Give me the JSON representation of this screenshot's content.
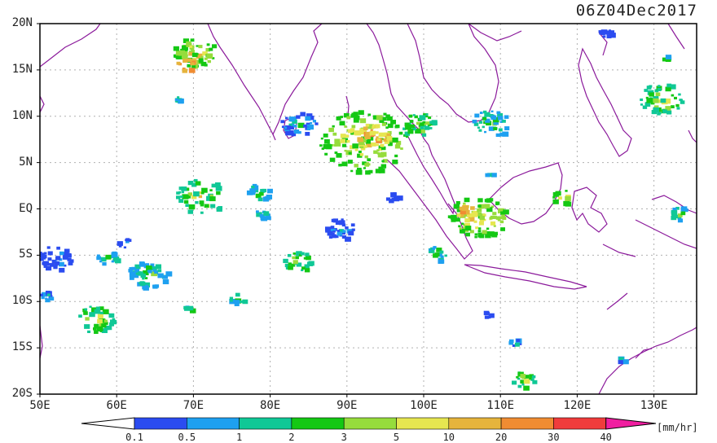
{
  "title": "06Z04Dec2017",
  "units": "[mm/hr]",
  "lat_axis": [
    "20N",
    "15N",
    "10N",
    "5N",
    "EQ",
    "5S",
    "10S",
    "15S",
    "20S"
  ],
  "lon_axis": [
    "50E",
    "60E",
    "70E",
    "80E",
    "90E",
    "100E",
    "110E",
    "120E",
    "130E"
  ],
  "colorbar": {
    "labels": [
      "0.1",
      "0.5",
      "1",
      "2",
      "3",
      "5",
      "10",
      "20",
      "30",
      "40"
    ],
    "colors": [
      "#ffffff",
      "#2b4cf0",
      "#1ea0f0",
      "#10c896",
      "#14c814",
      "#96dc3c",
      "#e6e650",
      "#e6b43c",
      "#f08c32",
      "#f03c3c",
      "#f01ea0"
    ]
  },
  "colors": {
    "coastline": "#8b1a9b",
    "grid": "#b0b0b0",
    "frame": "#000000"
  }
}
